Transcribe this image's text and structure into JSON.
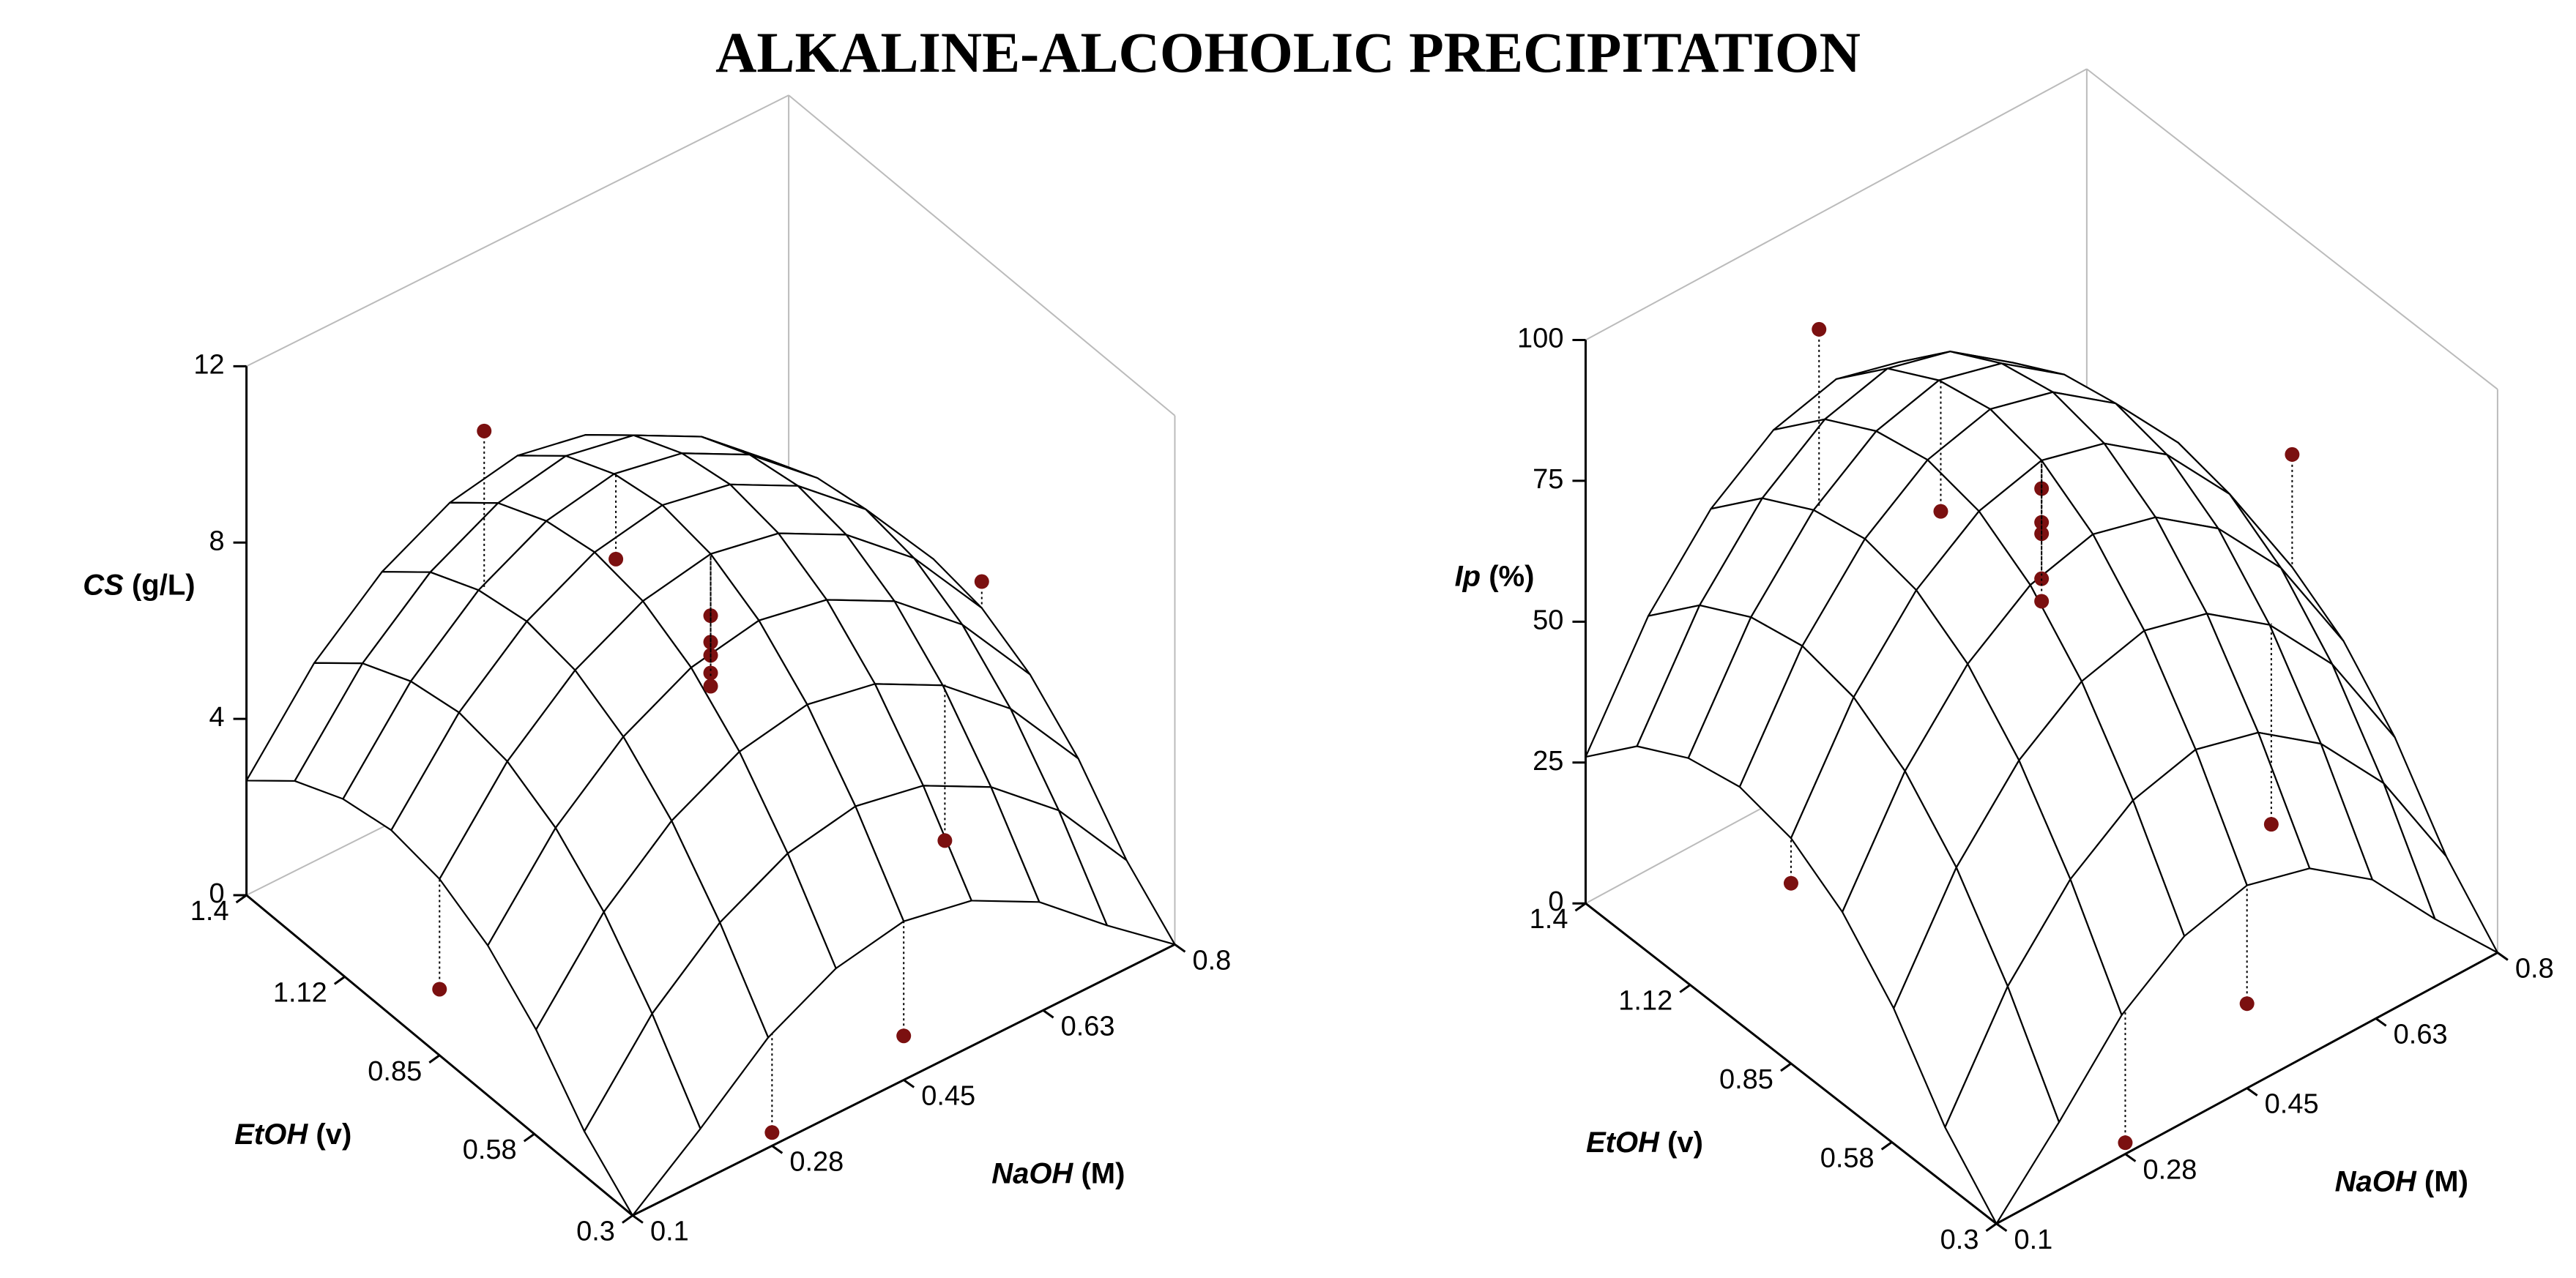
{
  "title": "ALKALINE-ALCOHOLIC PRECIPITATION",
  "chart_data": [
    {
      "type": "surface3d",
      "x_label": {
        "symbol": "NaOH",
        "unit": "(M)"
      },
      "y_label": {
        "symbol": "EtOH",
        "unit": "(v)"
      },
      "z_label": {
        "symbol": "CS",
        "unit": "(g/L)"
      },
      "xlim": [
        0.1,
        0.8
      ],
      "ylim": [
        0.3,
        1.4
      ],
      "zlim": [
        0,
        12
      ],
      "xticks": [
        0.1,
        0.28,
        0.45,
        0.63,
        0.8
      ],
      "yticks": [
        0.3,
        0.58,
        0.85,
        1.12,
        1.4
      ],
      "zticks": [
        0,
        4,
        8,
        12
      ],
      "surface": {
        "color": "#000000",
        "x": [
          0.1,
          0.1875,
          0.275,
          0.3625,
          0.45,
          0.5375,
          0.625,
          0.7125,
          0.8
        ],
        "y": [
          0.3,
          0.4375,
          0.575,
          0.7125,
          0.85,
          0.9875,
          1.125,
          1.2625,
          1.4
        ],
        "z": [
          [
            0,
            1.2,
            2.5,
            3.3,
            3.6,
            3.3,
            2.5,
            1.2,
            0
          ],
          [
            1.0,
            2.9,
            4.2,
            5.0,
            5.3,
            5.0,
            4.2,
            2.9,
            1.0
          ],
          [
            2.4,
            4.3,
            5.6,
            6.4,
            6.7,
            6.4,
            5.6,
            4.3,
            2.4
          ],
          [
            3.4,
            5.3,
            6.6,
            7.4,
            7.7,
            7.4,
            6.6,
            5.3,
            3.4
          ],
          [
            4.0,
            5.9,
            7.2,
            8.0,
            8.3,
            8.0,
            7.2,
            5.9,
            4.0
          ],
          [
            4.2,
            6.1,
            7.4,
            8.2,
            8.5,
            8.2,
            7.4,
            6.1,
            4.2
          ],
          [
            4.0,
            5.9,
            7.2,
            8.0,
            8.3,
            8.0,
            7.2,
            5.9,
            4.0
          ],
          [
            3.5,
            5.4,
            6.7,
            7.5,
            7.8,
            7.5,
            6.7,
            5.4,
            3.5
          ],
          [
            2.6,
            4.5,
            5.8,
            6.6,
            6.9,
            6.6,
            5.8,
            4.5,
            2.6
          ]
        ]
      },
      "points": {
        "color": "#7b1010",
        "x": [
          0.28,
          0.45,
          0.45,
          0.45,
          0.45,
          0.45,
          0.45,
          0.8,
          0.63,
          0.45,
          0.1,
          0.28
        ],
        "y": [
          1.12,
          0.85,
          0.85,
          0.85,
          0.85,
          0.85,
          1.12,
          0.85,
          0.58,
          0.3,
          0.85,
          0.3
        ],
        "z": [
          10.8,
          6.9,
          6.3,
          6.0,
          5.6,
          5.3,
          6.4,
          4.6,
          2.0,
          1.0,
          1.5,
          0.3
        ]
      }
    },
    {
      "type": "surface3d",
      "x_label": {
        "symbol": "NaOH",
        "unit": "(M)"
      },
      "y_label": {
        "symbol": "EtOH",
        "unit": "(v)"
      },
      "z_label": {
        "symbol": "Ip",
        "unit": "(%)"
      },
      "xlim": [
        0.1,
        0.8
      ],
      "ylim": [
        0.3,
        1.4
      ],
      "zlim": [
        0,
        100
      ],
      "xticks": [
        0.1,
        0.28,
        0.45,
        0.63,
        0.8
      ],
      "yticks": [
        0.3,
        0.58,
        0.85,
        1.12,
        1.4
      ],
      "zticks": [
        0,
        25,
        50,
        75,
        100
      ],
      "surface": {
        "color": "#000000",
        "x": [
          0.1,
          0.1875,
          0.275,
          0.3625,
          0.45,
          0.5375,
          0.625,
          0.7125,
          0.8
        ],
        "y": [
          0.3,
          0.4375,
          0.575,
          0.7125,
          0.85,
          0.9875,
          1.125,
          1.2625,
          1.4
        ],
        "z": [
          [
            0,
            12,
            25,
            33,
            36,
            33,
            25,
            12,
            0
          ],
          [
            10,
            29,
            42,
            50,
            53,
            50,
            42,
            29,
            10
          ],
          [
            24,
            43,
            56,
            64,
            67,
            64,
            56,
            43,
            24
          ],
          [
            34,
            53,
            66,
            74,
            77,
            74,
            66,
            53,
            34
          ],
          [
            40,
            59,
            72,
            80,
            83,
            80,
            72,
            59,
            40
          ],
          [
            42,
            61,
            74,
            82,
            85,
            82,
            74,
            61,
            42
          ],
          [
            40,
            59,
            72,
            80,
            83,
            80,
            72,
            59,
            40
          ],
          [
            35,
            54,
            67,
            75,
            78,
            75,
            67,
            54,
            35
          ],
          [
            26,
            45,
            58,
            66,
            69,
            66,
            58,
            45,
            26
          ]
        ]
      },
      "points": {
        "color": "#7b1010",
        "x": [
          0.28,
          0.45,
          0.45,
          0.45,
          0.45,
          0.45,
          0.45,
          0.8,
          0.63,
          0.45,
          0.1,
          0.28
        ],
        "y": [
          1.12,
          0.85,
          0.85,
          0.85,
          0.85,
          0.85,
          1.12,
          0.85,
          0.58,
          0.3,
          0.85,
          0.3
        ],
        "z": [
          104,
          78,
          72,
          70,
          62,
          58,
          60,
          60,
          20,
          15,
          32,
          2
        ]
      }
    }
  ]
}
